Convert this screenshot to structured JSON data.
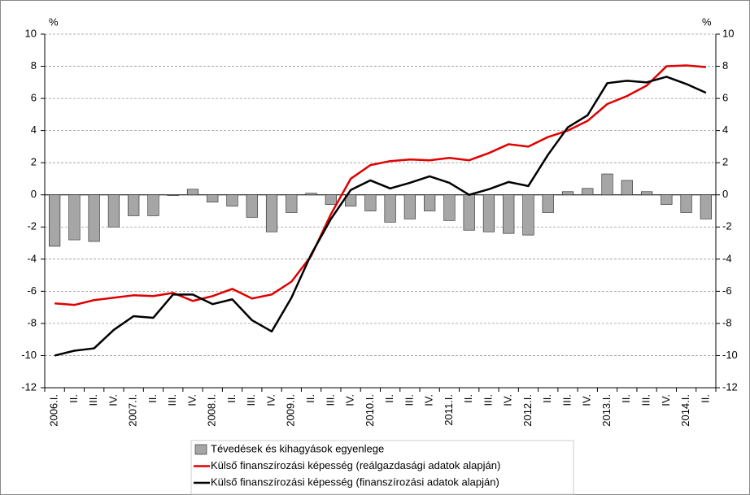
{
  "chart_data": {
    "type": "bar-line",
    "y_unit": "%",
    "y2_unit": "%",
    "categories": [
      "2006.I.",
      "II.",
      "III.",
      "IV.",
      "2007.I.",
      "II.",
      "III.",
      "IV.",
      "2008.I.",
      "II.",
      "III.",
      "IV.",
      "2009.I.",
      "II.",
      "III.",
      "IV.",
      "2010.I.",
      "II.",
      "III.",
      "IV.",
      "2011.I.",
      "II.",
      "III.",
      "IV.",
      "2012.I.",
      "II.",
      "III.",
      "IV.",
      "2013.I.",
      "II.",
      "III.",
      "IV.",
      "2014.I.",
      "II."
    ],
    "series": [
      {
        "name": "Tévedések és kihagyások egyenlege",
        "type": "bar",
        "color": "#a6a6a6",
        "values": [
          -3.2,
          -2.8,
          -2.9,
          -2.0,
          -1.3,
          -1.3,
          -0.05,
          0.35,
          -0.45,
          -0.7,
          -1.4,
          -2.3,
          -1.1,
          0.1,
          -0.6,
          -0.7,
          -1.0,
          -1.7,
          -1.5,
          -1.0,
          -1.6,
          -2.2,
          -2.3,
          -2.4,
          -2.5,
          -1.1,
          0.2,
          0.4,
          1.3,
          0.9,
          0.2,
          -0.6,
          -1.1,
          -1.5
        ]
      },
      {
        "name": "Külső finanszírozási képesség (reálgazdasági adatok alapján)",
        "type": "line",
        "color": "#e00000",
        "values": [
          -6.75,
          -6.85,
          -6.55,
          -6.4,
          -6.25,
          -6.3,
          -6.1,
          -6.6,
          -6.3,
          -5.85,
          -6.45,
          -6.2,
          -5.4,
          -3.8,
          -1.2,
          1.0,
          1.85,
          2.1,
          2.2,
          2.15,
          2.3,
          2.15,
          2.6,
          3.15,
          3.0,
          3.6,
          4.0,
          4.6,
          5.65,
          6.15,
          6.8,
          8.0,
          8.05,
          7.95
        ]
      },
      {
        "name": "Külső finanszírozási képesség (finanszírozási adatok alapján)",
        "type": "line",
        "color": "#000000",
        "values": [
          -10.0,
          -9.7,
          -9.55,
          -8.4,
          -7.55,
          -7.65,
          -6.2,
          -6.2,
          -6.8,
          -6.5,
          -7.8,
          -8.5,
          -6.4,
          -3.7,
          -1.5,
          0.3,
          0.9,
          0.4,
          0.75,
          1.15,
          0.75,
          0.0,
          0.35,
          0.8,
          0.55,
          2.5,
          4.2,
          4.95,
          6.95,
          7.1,
          7.0,
          7.35,
          6.9,
          6.35
        ]
      }
    ],
    "ylim": [
      -12,
      10
    ],
    "yticks": [
      -12,
      -10,
      -8,
      -6,
      -4,
      -2,
      0,
      2,
      4,
      6,
      8,
      10
    ],
    "y2lim": [
      -12,
      10
    ],
    "y2ticks": [
      -12,
      -10,
      -8,
      -6,
      -4,
      -2,
      0,
      2,
      4,
      6,
      8,
      10
    ],
    "grid": true,
    "legend": "bottom"
  }
}
